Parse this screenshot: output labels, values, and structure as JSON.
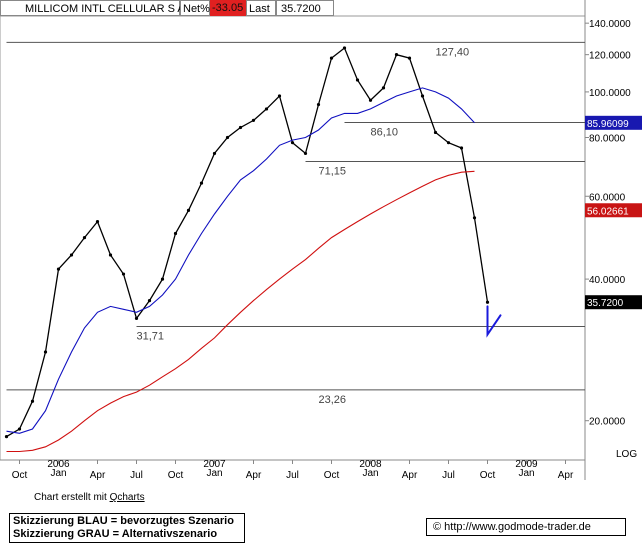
{
  "header": {
    "name": "MILLICOM INTL CELLULAR S A",
    "net_label": "Net%",
    "net_value": "-33.05",
    "last_label": "Last",
    "last_value": "35.7200"
  },
  "footer": {
    "credit_prefix": "Chart erstellt mit",
    "credit_link": "Qcharts",
    "legend_blue": "Skizzierung BLAU = bevorzugtes Szenario",
    "legend_grey": "Skizzierung GRAU = Alternativszenario",
    "copyright_symbol": "©",
    "url": "http://www.godmode-trader.de"
  },
  "colors": {
    "price": "#000000",
    "ma_blue": "#1010c0",
    "ma_red": "#d01010",
    "level_line": "#555555",
    "annotation": "#444444",
    "sketch": "#1a1adc",
    "badge_blue": "#1818b0",
    "badge_red": "#c81414",
    "badge_black": "#000000",
    "net_badge": "#e02020"
  },
  "chart_data": {
    "type": "line",
    "scale": "log",
    "y_range": [
      16.5,
      145
    ],
    "y_ticks": [
      "140.0000",
      "120.0000",
      "100.0000",
      "80.0000",
      "60.0000",
      "40.0000",
      "20.0000"
    ],
    "y_tick_values": [
      140,
      120,
      100,
      80,
      60,
      40,
      20
    ],
    "scale_label": "LOG",
    "x_range": [
      "2005-09",
      "2009-06"
    ],
    "x_ticks": [
      {
        "date": "2005-10",
        "label": "Oct",
        "year": ""
      },
      {
        "date": "2006-01",
        "label": "Jan",
        "year": "2006"
      },
      {
        "date": "2006-04",
        "label": "Apr",
        "year": ""
      },
      {
        "date": "2006-07",
        "label": "Jul",
        "year": ""
      },
      {
        "date": "2006-10",
        "label": "Oct",
        "year": ""
      },
      {
        "date": "2007-01",
        "label": "Jan",
        "year": "2007"
      },
      {
        "date": "2007-04",
        "label": "Apr",
        "year": ""
      },
      {
        "date": "2007-07",
        "label": "Jul",
        "year": ""
      },
      {
        "date": "2007-10",
        "label": "Oct",
        "year": ""
      },
      {
        "date": "2008-01",
        "label": "Jan",
        "year": "2008"
      },
      {
        "date": "2008-04",
        "label": "Apr",
        "year": ""
      },
      {
        "date": "2008-07",
        "label": "Jul",
        "year": ""
      },
      {
        "date": "2008-10",
        "label": "Oct",
        "year": ""
      },
      {
        "date": "2009-01",
        "label": "Jan",
        "year": "2009"
      },
      {
        "date": "2009-04",
        "label": "Apr",
        "year": ""
      }
    ],
    "levels": [
      {
        "value": 127.4,
        "label": "127,40",
        "x_from": "2005-09",
        "label_at": "2008-06"
      },
      {
        "value": 86.1,
        "label": "86,10",
        "x_from": "2007-11",
        "label_at": "2008-01"
      },
      {
        "value": 71.15,
        "label": "71,15",
        "x_from": "2007-08",
        "label_at": "2007-09"
      },
      {
        "value": 31.71,
        "label": "31,71",
        "x_from": "2006-07",
        "label_at": "2006-07"
      },
      {
        "value": 23.26,
        "label": "23,26",
        "x_from": "2005-09",
        "label_at": "2007-09"
      }
    ],
    "series": [
      {
        "kind": "price",
        "x": [
          "2005-09",
          "2005-10",
          "2005-11",
          "2005-12",
          "2006-01",
          "2006-02",
          "2006-03",
          "2006-04",
          "2006-05",
          "2006-06",
          "2006-07",
          "2006-08",
          "2006-09",
          "2006-10",
          "2006-11",
          "2006-12",
          "2007-01",
          "2007-02",
          "2007-03",
          "2007-04",
          "2007-05",
          "2007-06",
          "2007-07",
          "2007-08",
          "2007-09",
          "2007-10",
          "2007-11",
          "2007-12",
          "2008-01",
          "2008-02",
          "2008-03",
          "2008-04",
          "2008-05",
          "2008-06",
          "2008-07",
          "2008-08",
          "2008-09",
          "2008-10"
        ],
        "values": [
          18.5,
          19.2,
          22.0,
          28.0,
          42.0,
          45.0,
          49.0,
          53.0,
          45.0,
          41.0,
          33.0,
          36.0,
          40.0,
          50.0,
          56.0,
          64.0,
          74.0,
          80.0,
          84.0,
          87.0,
          92.0,
          98.0,
          78.0,
          74.0,
          94.0,
          118.0,
          124.0,
          106.0,
          96.0,
          102.0,
          120.0,
          118.0,
          98.0,
          82.0,
          78.0,
          76.0,
          54.0,
          35.72
        ]
      },
      {
        "kind": "moving-average",
        "x": [
          "2005-09",
          "2005-10",
          "2005-11",
          "2005-12",
          "2006-01",
          "2006-02",
          "2006-03",
          "2006-04",
          "2006-05",
          "2006-06",
          "2006-07",
          "2006-08",
          "2006-09",
          "2006-10",
          "2006-11",
          "2006-12",
          "2007-01",
          "2007-02",
          "2007-03",
          "2007-04",
          "2007-05",
          "2007-06",
          "2007-07",
          "2007-08",
          "2007-09",
          "2007-10",
          "2007-11",
          "2007-12",
          "2008-01",
          "2008-02",
          "2008-03",
          "2008-04",
          "2008-05",
          "2008-06",
          "2008-07",
          "2008-08",
          "2008-09"
        ],
        "values": [
          19.0,
          18.8,
          19.2,
          21.0,
          24.5,
          28.0,
          31.5,
          34.0,
          35.0,
          34.5,
          34.0,
          35.0,
          37.0,
          40.0,
          45.0,
          50.0,
          55.0,
          60.0,
          65.0,
          68.0,
          72.0,
          77.0,
          79.0,
          80.0,
          83.0,
          88.0,
          90.0,
          90.0,
          92.0,
          95.0,
          98.0,
          100.0,
          102.0,
          100.0,
          97.0,
          92.0,
          86.0
        ]
      },
      {
        "kind": "moving-average",
        "x": [
          "2005-09",
          "2005-10",
          "2005-11",
          "2005-12",
          "2006-01",
          "2006-02",
          "2006-03",
          "2006-04",
          "2006-05",
          "2006-06",
          "2006-07",
          "2006-08",
          "2006-09",
          "2006-10",
          "2006-11",
          "2006-12",
          "2007-01",
          "2007-02",
          "2007-03",
          "2007-04",
          "2007-05",
          "2007-06",
          "2007-07",
          "2007-08",
          "2007-09",
          "2007-10",
          "2007-11",
          "2007-12",
          "2008-01",
          "2008-02",
          "2008-03",
          "2008-04",
          "2008-05",
          "2008-06",
          "2008-07",
          "2008-08",
          "2008-09"
        ],
        "values": [
          17.2,
          17.2,
          17.3,
          17.6,
          18.2,
          19.0,
          20.0,
          21.0,
          21.8,
          22.5,
          23.0,
          23.8,
          24.8,
          25.8,
          27.0,
          28.5,
          30.0,
          32.0,
          34.0,
          36.0,
          38.0,
          40.0,
          42.0,
          44.0,
          46.5,
          49.0,
          51.0,
          53.0,
          55.0,
          57.0,
          59.0,
          61.0,
          63.0,
          65.0,
          66.5,
          67.5,
          67.8
        ]
      }
    ],
    "badges": [
      {
        "label": "85.96099",
        "value": 85.96099,
        "color_key": "badge_blue"
      },
      {
        "label": "56.02661",
        "value": 56.02661,
        "color_key": "badge_red"
      },
      {
        "label": "35.7200",
        "value": 35.72,
        "color_key": "badge_black"
      }
    ],
    "sketch": {
      "x": [
        "2008-10",
        "2008-10",
        "2008-11"
      ],
      "values": [
        35.0,
        30.5,
        33.5
      ]
    }
  }
}
